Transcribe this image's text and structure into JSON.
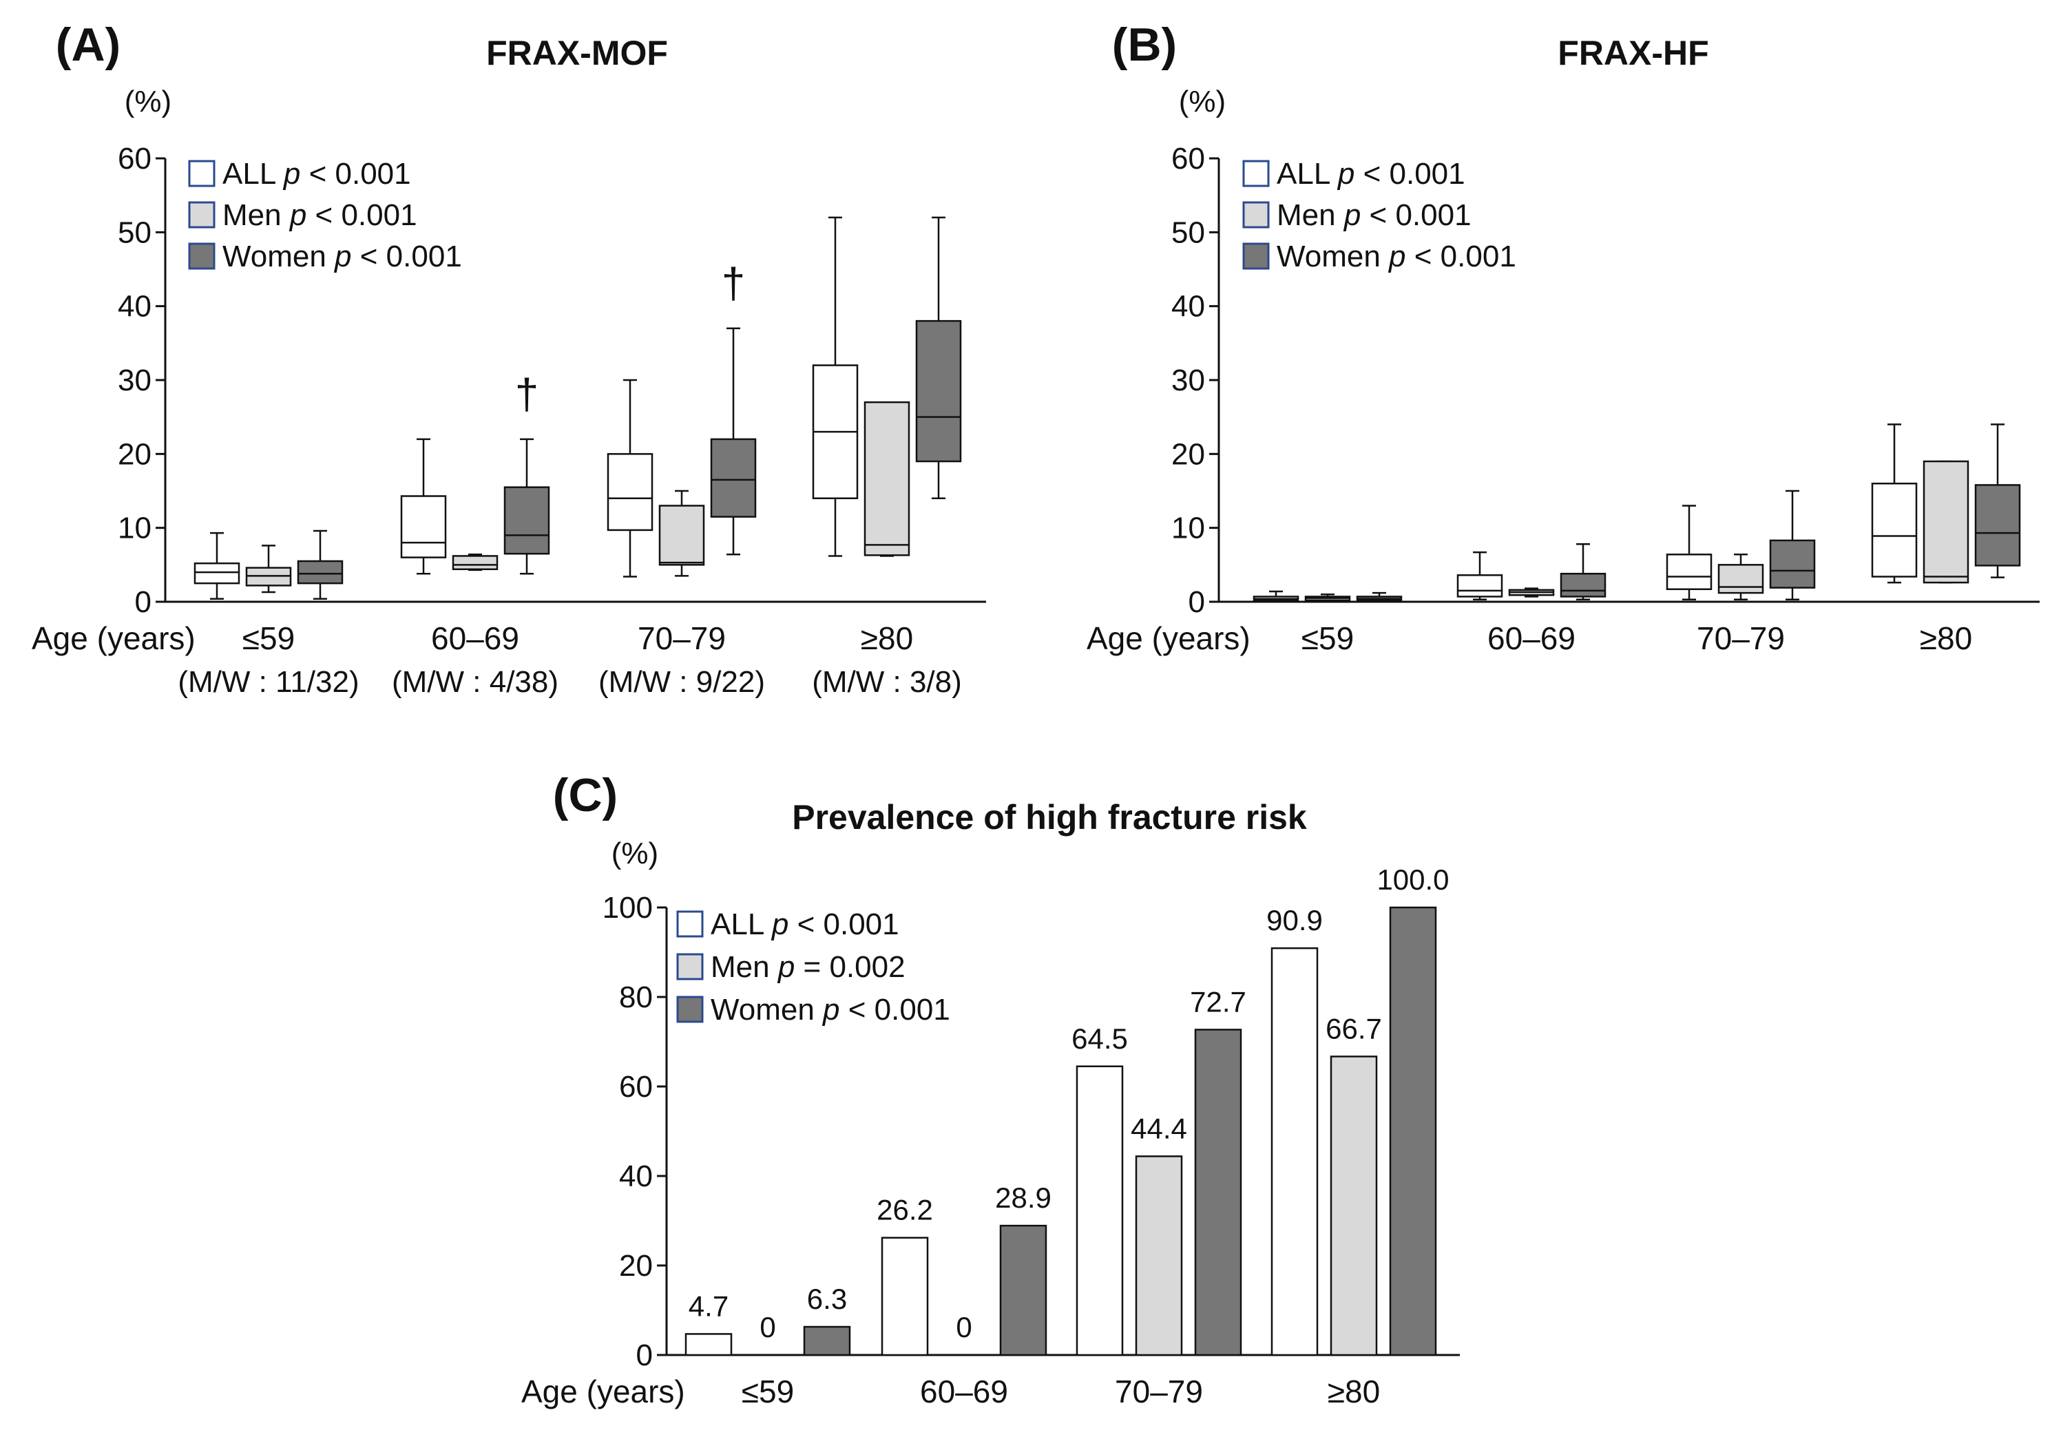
{
  "colors": {
    "all": "#ffffff",
    "men": "#d9d9d9",
    "women": "#777777",
    "stroke": "#111111",
    "legend_border": "#2b4a8f"
  },
  "chart_data": [
    {
      "panel": "(A)",
      "type": "box",
      "title": "FRAX-MOF",
      "ylabel": "(%)",
      "ylim": [
        0,
        60
      ],
      "yticks": [
        0,
        10,
        20,
        30,
        40,
        50,
        60
      ],
      "xlabel": "Age (years)",
      "categories": [
        "≤59",
        "60–69",
        "70–79",
        "≥80"
      ],
      "subcategories": [
        "(M/W : 11/32)",
        "(M/W : 4/38)",
        "(M/W : 9/22)",
        "(M/W : 3/8)"
      ],
      "legend": [
        {
          "name": "ALL",
          "p": "p",
          "rest": " < 0.001"
        },
        {
          "name": "Men",
          "p": "p",
          "rest": " < 0.001"
        },
        {
          "name": "Women",
          "p": "p",
          "rest": " < 0.001"
        }
      ],
      "series": [
        {
          "name": "ALL",
          "color_key": "all",
          "boxes": [
            [
              0.4,
              2.5,
              4.0,
              5.2,
              9.3
            ],
            [
              3.8,
              6.0,
              8.0,
              14.3,
              22.0
            ],
            [
              3.4,
              9.7,
              14.0,
              20.0,
              30.0
            ],
            [
              6.2,
              14.0,
              23.0,
              32.0,
              52.0
            ]
          ]
        },
        {
          "name": "Men",
          "color_key": "men",
          "boxes": [
            [
              1.3,
              2.2,
              3.5,
              4.6,
              7.6
            ],
            [
              4.3,
              4.4,
              5.0,
              6.2,
              6.4
            ],
            [
              3.5,
              5.0,
              5.3,
              13.0,
              15.0
            ],
            [
              6.2,
              6.3,
              7.7,
              27.0,
              27.0
            ]
          ]
        },
        {
          "name": "Women",
          "color_key": "women",
          "boxes": [
            [
              0.4,
              2.5,
              3.8,
              5.5,
              9.6
            ],
            [
              3.8,
              6.5,
              9.0,
              15.5,
              22.0
            ],
            [
              6.4,
              11.5,
              16.5,
              22.0,
              37.0
            ],
            [
              14.0,
              19.0,
              25.0,
              38.0,
              52.0
            ]
          ]
        }
      ],
      "annotations": [
        {
          "text": "†",
          "category": "60–69",
          "series": "Women",
          "y": 28
        },
        {
          "text": "†",
          "category": "70–79",
          "series": "Women",
          "y": 43
        }
      ]
    },
    {
      "panel": "(B)",
      "type": "box",
      "title": "FRAX-HF",
      "ylabel": "(%)",
      "ylim": [
        0,
        60
      ],
      "yticks": [
        0,
        10,
        20,
        30,
        40,
        50,
        60
      ],
      "xlabel": "Age (years)",
      "categories": [
        "≤59",
        "60–69",
        "70–79",
        "≥80"
      ],
      "legend": [
        {
          "name": "ALL",
          "p": "p",
          "rest": " < 0.001"
        },
        {
          "name": "Men",
          "p": "p",
          "rest": " < 0.001"
        },
        {
          "name": "Women",
          "p": "p",
          "rest": " < 0.001"
        }
      ],
      "series": [
        {
          "name": "ALL",
          "color_key": "all",
          "boxes": [
            [
              0.0,
              0.2,
              0.4,
              0.7,
              1.4
            ],
            [
              0.3,
              0.7,
              1.5,
              3.6,
              6.7
            ],
            [
              0.3,
              1.7,
              3.4,
              6.4,
              13.0
            ],
            [
              2.6,
              3.4,
              8.9,
              16.0,
              24.0
            ]
          ]
        },
        {
          "name": "Men",
          "color_key": "men",
          "boxes": [
            [
              0.1,
              0.2,
              0.5,
              0.7,
              1.0
            ],
            [
              0.7,
              0.9,
              1.3,
              1.6,
              1.8
            ],
            [
              0.3,
              1.2,
              2.0,
              5.0,
              6.4
            ],
            [
              2.6,
              2.6,
              3.4,
              19.0,
              19.0
            ]
          ]
        },
        {
          "name": "Women",
          "color_key": "women",
          "boxes": [
            [
              0.0,
              0.2,
              0.4,
              0.7,
              1.2
            ],
            [
              0.3,
              0.7,
              1.5,
              3.8,
              7.8
            ],
            [
              0.3,
              1.9,
              4.2,
              8.3,
              15.0
            ],
            [
              3.3,
              4.9,
              9.3,
              15.8,
              24.0
            ]
          ]
        }
      ]
    },
    {
      "panel": "(C)",
      "type": "bar",
      "title": "Prevalence of high fracture risk",
      "ylabel": "(%)",
      "ylim": [
        0,
        100
      ],
      "yticks": [
        0,
        20,
        40,
        60,
        80,
        100
      ],
      "xlabel": "Age (years)",
      "categories": [
        "≤59",
        "60–69",
        "70–79",
        "≥80"
      ],
      "legend": [
        {
          "name": "ALL",
          "p": "p",
          "rest": " < 0.001"
        },
        {
          "name": "Men",
          "p": "p",
          "rest": " = 0.002"
        },
        {
          "name": "Women",
          "p": "p",
          "rest": " < 0.001"
        }
      ],
      "series": [
        {
          "name": "ALL",
          "color_key": "all",
          "values": [
            4.7,
            26.2,
            64.5,
            90.9
          ],
          "labels": [
            "4.7",
            "26.2",
            "64.5",
            "90.9"
          ]
        },
        {
          "name": "Men",
          "color_key": "men",
          "values": [
            0,
            0,
            44.4,
            66.7
          ],
          "labels": [
            "0",
            "0",
            "44.4",
            "66.7"
          ]
        },
        {
          "name": "Women",
          "color_key": "women",
          "values": [
            6.3,
            28.9,
            72.7,
            100.0
          ],
          "labels": [
            "6.3",
            "28.9",
            "72.7",
            "100.0"
          ]
        }
      ]
    }
  ]
}
